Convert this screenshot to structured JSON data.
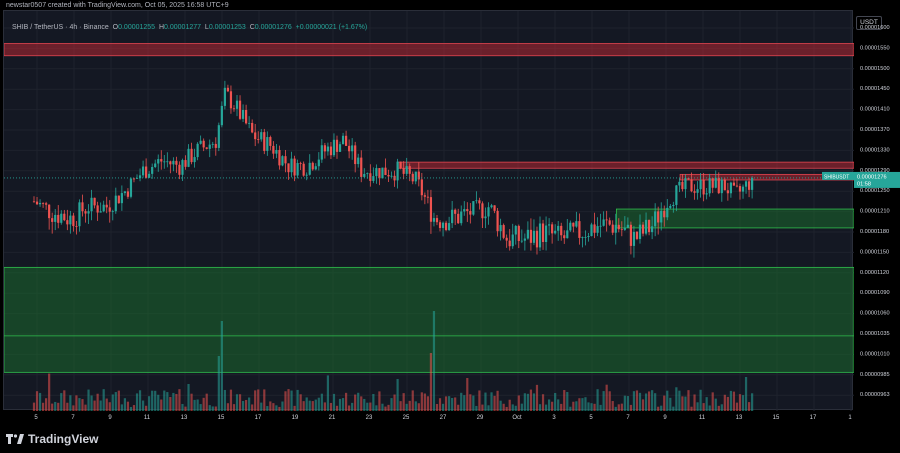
{
  "header": {
    "caption": "newstar0507 created with TradingView.com, Oct 05, 2025 16:58 UTC+9",
    "symbol": "SHIB / TetherUS · 4h · Binance",
    "ohlc": {
      "o_label": "O",
      "o_value": "0.00001255",
      "h_label": "H",
      "h_value": "0.00001277",
      "l_label": "L",
      "l_value": "0.00001253",
      "c_label": "C",
      "c_value": "0.00001276",
      "change": "+0.00000021 (+1.67%)"
    }
  },
  "axis_unit": "USDT",
  "price_tag": {
    "symbol": "SHIBUSDT",
    "price": "0.00001276",
    "countdown": "01:58"
  },
  "footer": {
    "brand": "TradingView"
  },
  "colors": {
    "up": "#26a69a",
    "down": "#ef5350",
    "resistance": "#b22833",
    "support": "#1b7a2e",
    "background": "#141823"
  },
  "chart_data": {
    "type": "candlestick",
    "y_ticks": [
      "0.00001600",
      "0.00001550",
      "0.00001500",
      "0.00001450",
      "0.00001410",
      "0.00001370",
      "0.00001330",
      "0.00001290",
      "0.00001250",
      "0.00001210",
      "0.00001180",
      "0.00001150",
      "0.00001120",
      "0.00001090",
      "0.00001060",
      "0.00001035",
      "0.00001010",
      "0.00000985",
      "0.00000963"
    ],
    "x_ticks": [
      "5",
      "7",
      "9",
      "11",
      "13",
      "15",
      "17",
      "19",
      "21",
      "23",
      "25",
      "27",
      "29",
      "Oct",
      "3",
      "5",
      "7",
      "9",
      "11",
      "13",
      "15",
      "17",
      "1"
    ],
    "price_range": [
      9.5e-06,
      1.62e-05
    ],
    "zones": [
      {
        "kind": "resistance",
        "top": 1.562e-05,
        "bottom": 1.532e-05
      },
      {
        "kind": "resistance",
        "top": 1.307e-05,
        "bottom": 1.295e-05,
        "from_day": 20
      },
      {
        "kind": "resistance",
        "top": 1.283e-05,
        "bottom": 1.272e-05,
        "from_day": 35.5
      },
      {
        "kind": "support",
        "top": 1.215e-05,
        "bottom": 1.186e-05,
        "from_day": 32
      },
      {
        "kind": "support",
        "top": 1.128e-05,
        "bottom": 9.88e-06
      }
    ],
    "path": [
      [
        0,
        1.23e-05
      ],
      [
        1,
        1.21e-05
      ],
      [
        2,
        1.2e-05
      ],
      [
        3,
        1.22e-05
      ],
      [
        4,
        1.22e-05
      ],
      [
        5,
        1.25e-05
      ],
      [
        6,
        1.29e-05
      ],
      [
        7,
        1.31e-05
      ],
      [
        8,
        1.3e-05
      ],
      [
        9,
        1.33e-05
      ],
      [
        10,
        1.35e-05
      ],
      [
        10.5,
        1.44e-05
      ],
      [
        11,
        1.42e-05
      ],
      [
        12,
        1.36e-05
      ],
      [
        13,
        1.34e-05
      ],
      [
        14,
        1.3e-05
      ],
      [
        15,
        1.3e-05
      ],
      [
        16,
        1.33e-05
      ],
      [
        17,
        1.35e-05
      ],
      [
        18,
        1.29e-05
      ],
      [
        19,
        1.29e-05
      ],
      [
        20,
        1.29e-05
      ],
      [
        21,
        1.27e-05
      ],
      [
        22,
        1.2e-05
      ],
      [
        23,
        1.2e-05
      ],
      [
        24,
        1.21e-05
      ],
      [
        25,
        1.22e-05
      ],
      [
        26,
        1.17e-05
      ],
      [
        27,
        1.17e-05
      ],
      [
        28,
        1.18e-05
      ],
      [
        29,
        1.17e-05
      ],
      [
        30,
        1.18e-05
      ],
      [
        31,
        1.19e-05
      ],
      [
        32,
        1.19e-05
      ],
      [
        33,
        1.17e-05
      ],
      [
        34,
        1.19e-05
      ],
      [
        35,
        1.24e-05
      ],
      [
        36,
        1.26e-05
      ],
      [
        37,
        1.26e-05
      ],
      [
        38,
        1.26e-05
      ],
      [
        38.5,
        1.24e-05
      ],
      [
        39,
        1.255e-05
      ],
      [
        39.5,
        1.276e-05
      ]
    ]
  }
}
